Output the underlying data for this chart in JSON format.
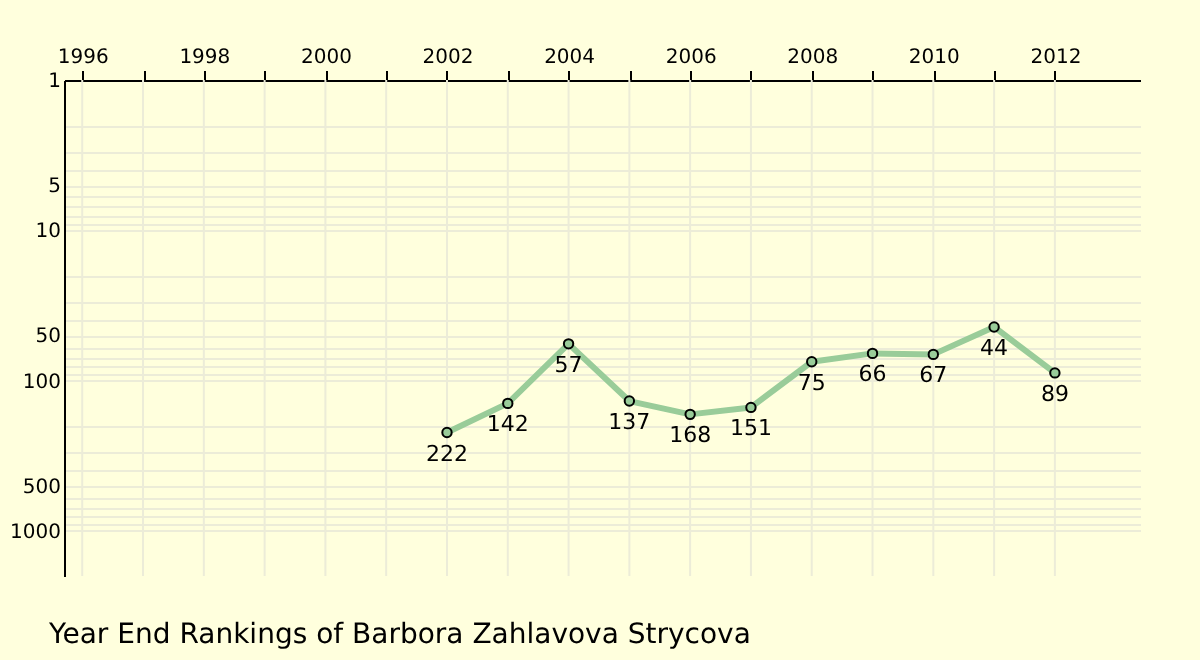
{
  "chart_data": {
    "type": "line",
    "title": "Year End Rankings of Barbora Zahlavova Strycova",
    "x": [
      2002,
      2003,
      2004,
      2005,
      2006,
      2007,
      2008,
      2009,
      2010,
      2011,
      2012
    ],
    "series": [
      {
        "color": "#99cc99",
        "values": [
          222,
          142,
          57,
          137,
          168,
          151,
          75,
          66,
          67,
          44,
          89
        ]
      }
    ],
    "data_labels": true,
    "marker": "circle",
    "log": "y",
    "grid": true,
    "xlim": [
      1995.7,
      2013.4
    ],
    "xticks": [
      1996,
      {
        "value": 1997,
        "label": null
      },
      1998,
      {
        "value": 1999,
        "label": null
      },
      2000,
      {
        "value": 2001,
        "label": null
      },
      2002,
      {
        "value": 2003,
        "label": null
      },
      2004,
      {
        "value": 2005,
        "label": null
      },
      2006,
      {
        "value": 2007,
        "label": null
      },
      2008,
      {
        "value": 2009,
        "label": null
      },
      2010,
      {
        "value": 2011,
        "label": null
      },
      2012
    ],
    "ylim": [
      2000,
      1
    ],
    "yticks": [
      1,
      {
        "value": 2,
        "label": null
      },
      {
        "value": 3,
        "label": null
      },
      {
        "value": 4,
        "label": null
      },
      5,
      {
        "value": 6,
        "label": null
      },
      {
        "value": 7,
        "label": null
      },
      {
        "value": 8,
        "label": null
      },
      {
        "value": 9,
        "label": null
      },
      10,
      {
        "value": 20,
        "label": null
      },
      {
        "value": 30,
        "label": null
      },
      {
        "value": 40,
        "label": null
      },
      50,
      {
        "value": 60,
        "label": null
      },
      {
        "value": 70,
        "label": null
      },
      {
        "value": 80,
        "label": null
      },
      {
        "value": 90,
        "label": null
      },
      100,
      {
        "value": 200,
        "label": null
      },
      {
        "value": 300,
        "label": null
      },
      {
        "value": 400,
        "label": null
      },
      500,
      {
        "value": 600,
        "label": null
      },
      {
        "value": 700,
        "label": null
      },
      {
        "value": 800,
        "label": null
      },
      {
        "value": 900,
        "label": null
      },
      1000
    ]
  }
}
